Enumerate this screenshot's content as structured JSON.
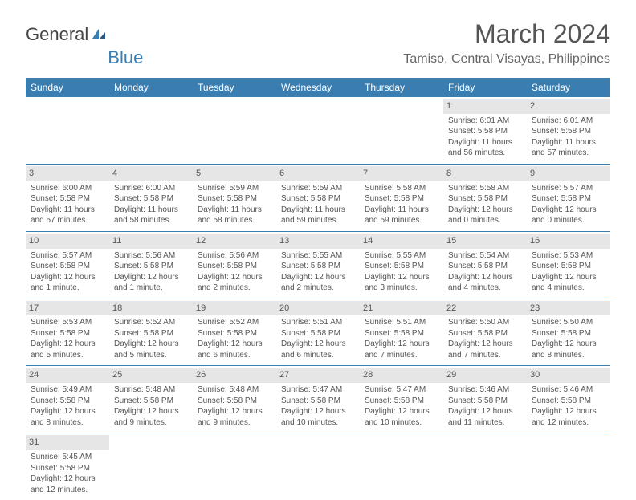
{
  "brand": {
    "part1": "General",
    "part2": "Blue"
  },
  "title": "March 2024",
  "location": "Tamiso, Central Visayas, Philippines",
  "colors": {
    "header_bg": "#3a7db0",
    "header_text": "#ffffff",
    "daynum_bg": "#e6e6e6",
    "text": "#555555",
    "border": "#3a7db0"
  },
  "weekdays": [
    "Sunday",
    "Monday",
    "Tuesday",
    "Wednesday",
    "Thursday",
    "Friday",
    "Saturday"
  ],
  "weeks": [
    [
      null,
      null,
      null,
      null,
      null,
      {
        "n": "1",
        "sr": "Sunrise: 6:01 AM",
        "ss": "Sunset: 5:58 PM",
        "dl": "Daylight: 11 hours and 56 minutes."
      },
      {
        "n": "2",
        "sr": "Sunrise: 6:01 AM",
        "ss": "Sunset: 5:58 PM",
        "dl": "Daylight: 11 hours and 57 minutes."
      }
    ],
    [
      {
        "n": "3",
        "sr": "Sunrise: 6:00 AM",
        "ss": "Sunset: 5:58 PM",
        "dl": "Daylight: 11 hours and 57 minutes."
      },
      {
        "n": "4",
        "sr": "Sunrise: 6:00 AM",
        "ss": "Sunset: 5:58 PM",
        "dl": "Daylight: 11 hours and 58 minutes."
      },
      {
        "n": "5",
        "sr": "Sunrise: 5:59 AM",
        "ss": "Sunset: 5:58 PM",
        "dl": "Daylight: 11 hours and 58 minutes."
      },
      {
        "n": "6",
        "sr": "Sunrise: 5:59 AM",
        "ss": "Sunset: 5:58 PM",
        "dl": "Daylight: 11 hours and 59 minutes."
      },
      {
        "n": "7",
        "sr": "Sunrise: 5:58 AM",
        "ss": "Sunset: 5:58 PM",
        "dl": "Daylight: 11 hours and 59 minutes."
      },
      {
        "n": "8",
        "sr": "Sunrise: 5:58 AM",
        "ss": "Sunset: 5:58 PM",
        "dl": "Daylight: 12 hours and 0 minutes."
      },
      {
        "n": "9",
        "sr": "Sunrise: 5:57 AM",
        "ss": "Sunset: 5:58 PM",
        "dl": "Daylight: 12 hours and 0 minutes."
      }
    ],
    [
      {
        "n": "10",
        "sr": "Sunrise: 5:57 AM",
        "ss": "Sunset: 5:58 PM",
        "dl": "Daylight: 12 hours and 1 minute."
      },
      {
        "n": "11",
        "sr": "Sunrise: 5:56 AM",
        "ss": "Sunset: 5:58 PM",
        "dl": "Daylight: 12 hours and 1 minute."
      },
      {
        "n": "12",
        "sr": "Sunrise: 5:56 AM",
        "ss": "Sunset: 5:58 PM",
        "dl": "Daylight: 12 hours and 2 minutes."
      },
      {
        "n": "13",
        "sr": "Sunrise: 5:55 AM",
        "ss": "Sunset: 5:58 PM",
        "dl": "Daylight: 12 hours and 2 minutes."
      },
      {
        "n": "14",
        "sr": "Sunrise: 5:55 AM",
        "ss": "Sunset: 5:58 PM",
        "dl": "Daylight: 12 hours and 3 minutes."
      },
      {
        "n": "15",
        "sr": "Sunrise: 5:54 AM",
        "ss": "Sunset: 5:58 PM",
        "dl": "Daylight: 12 hours and 4 minutes."
      },
      {
        "n": "16",
        "sr": "Sunrise: 5:53 AM",
        "ss": "Sunset: 5:58 PM",
        "dl": "Daylight: 12 hours and 4 minutes."
      }
    ],
    [
      {
        "n": "17",
        "sr": "Sunrise: 5:53 AM",
        "ss": "Sunset: 5:58 PM",
        "dl": "Daylight: 12 hours and 5 minutes."
      },
      {
        "n": "18",
        "sr": "Sunrise: 5:52 AM",
        "ss": "Sunset: 5:58 PM",
        "dl": "Daylight: 12 hours and 5 minutes."
      },
      {
        "n": "19",
        "sr": "Sunrise: 5:52 AM",
        "ss": "Sunset: 5:58 PM",
        "dl": "Daylight: 12 hours and 6 minutes."
      },
      {
        "n": "20",
        "sr": "Sunrise: 5:51 AM",
        "ss": "Sunset: 5:58 PM",
        "dl": "Daylight: 12 hours and 6 minutes."
      },
      {
        "n": "21",
        "sr": "Sunrise: 5:51 AM",
        "ss": "Sunset: 5:58 PM",
        "dl": "Daylight: 12 hours and 7 minutes."
      },
      {
        "n": "22",
        "sr": "Sunrise: 5:50 AM",
        "ss": "Sunset: 5:58 PM",
        "dl": "Daylight: 12 hours and 7 minutes."
      },
      {
        "n": "23",
        "sr": "Sunrise: 5:50 AM",
        "ss": "Sunset: 5:58 PM",
        "dl": "Daylight: 12 hours and 8 minutes."
      }
    ],
    [
      {
        "n": "24",
        "sr": "Sunrise: 5:49 AM",
        "ss": "Sunset: 5:58 PM",
        "dl": "Daylight: 12 hours and 8 minutes."
      },
      {
        "n": "25",
        "sr": "Sunrise: 5:48 AM",
        "ss": "Sunset: 5:58 PM",
        "dl": "Daylight: 12 hours and 9 minutes."
      },
      {
        "n": "26",
        "sr": "Sunrise: 5:48 AM",
        "ss": "Sunset: 5:58 PM",
        "dl": "Daylight: 12 hours and 9 minutes."
      },
      {
        "n": "27",
        "sr": "Sunrise: 5:47 AM",
        "ss": "Sunset: 5:58 PM",
        "dl": "Daylight: 12 hours and 10 minutes."
      },
      {
        "n": "28",
        "sr": "Sunrise: 5:47 AM",
        "ss": "Sunset: 5:58 PM",
        "dl": "Daylight: 12 hours and 10 minutes."
      },
      {
        "n": "29",
        "sr": "Sunrise: 5:46 AM",
        "ss": "Sunset: 5:58 PM",
        "dl": "Daylight: 12 hours and 11 minutes."
      },
      {
        "n": "30",
        "sr": "Sunrise: 5:46 AM",
        "ss": "Sunset: 5:58 PM",
        "dl": "Daylight: 12 hours and 12 minutes."
      }
    ],
    [
      {
        "n": "31",
        "sr": "Sunrise: 5:45 AM",
        "ss": "Sunset: 5:58 PM",
        "dl": "Daylight: 12 hours and 12 minutes."
      },
      null,
      null,
      null,
      null,
      null,
      null
    ]
  ]
}
